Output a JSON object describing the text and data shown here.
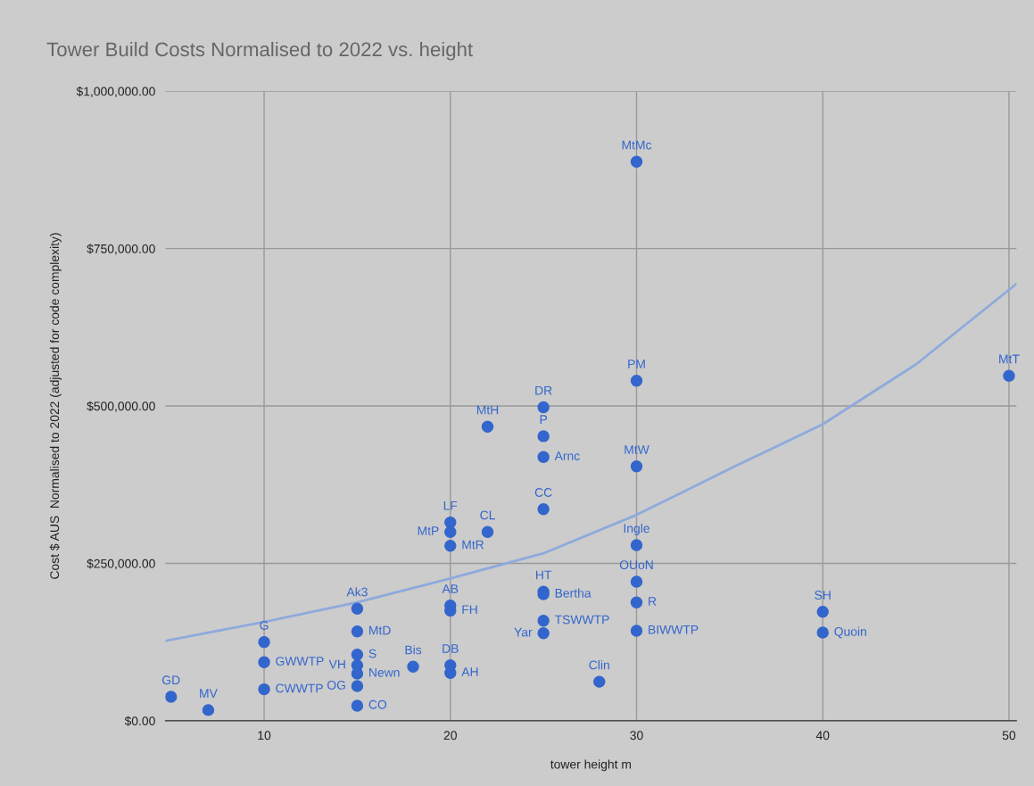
{
  "chart_data": {
    "type": "scatter",
    "title": "Tower Build Costs Normalised to 2022 vs. height",
    "xlabel": "tower height m",
    "ylabel": "Cost $ AUS  Normalised to 2022 (adjusted for code complexity)",
    "series": [
      {
        "color": "#3366cc",
        "marker": "circle",
        "x": [
          5,
          7,
          10,
          10,
          10,
          15,
          15,
          15,
          15,
          15,
          15,
          15,
          18,
          20,
          20,
          20,
          20,
          20,
          20,
          20,
          22,
          22,
          25,
          25,
          25,
          25,
          25,
          25,
          25,
          25,
          28,
          30,
          30,
          30,
          30,
          30,
          30,
          30,
          40,
          40,
          50
        ],
        "values": [
          38000,
          17000,
          125000,
          93000,
          50000,
          178000,
          142000,
          105000,
          88000,
          75000,
          55000,
          24000,
          86000,
          183000,
          175000,
          88000,
          76000,
          278000,
          300000,
          315000,
          300000,
          467000,
          498000,
          452000,
          419000,
          336000,
          205000,
          201000,
          159000,
          139000,
          62000,
          888000,
          540000,
          404000,
          279000,
          221000,
          188000,
          143000,
          173000,
          140000,
          548000
        ],
        "value_labels": [
          "GD",
          "MV",
          "G",
          "GWWTP",
          "CWWTP",
          "Ak3",
          "MtD",
          "S",
          "VH",
          "Newn",
          "OG",
          "CO",
          "Bis",
          "AB",
          "FH",
          "DB",
          "AH",
          "MtR",
          "MtP",
          "LF",
          "CL",
          "MtH",
          "DR",
          "P",
          "Arnc",
          "CC",
          "HT",
          "Bertha",
          "TSWWTP",
          "Yar",
          "Clin",
          "MtMc",
          "PM",
          "MtW",
          "Ingle",
          "OUoN",
          "R",
          "BIWWTP",
          "SH",
          "Quoin",
          "MtT"
        ]
      },
      {
        "type": "line",
        "color": "#8eaadc",
        "marker": "none",
        "line_style": "solid",
        "x": [
          4.7,
          10,
          15,
          20,
          25,
          30,
          35,
          40,
          45,
          50.4
        ],
        "values": [
          127000,
          157000,
          188000,
          226000,
          266000,
          327000,
          400000,
          471000,
          566000,
          694000
        ]
      }
    ],
    "xlim": [
      4.7,
      50.4
    ],
    "xticks": [
      10,
      20,
      30,
      40,
      50
    ],
    "ylim": [
      0,
      1000000
    ],
    "yticks": [
      {
        "value": 0,
        "label": "$0.00"
      },
      {
        "value": 250000,
        "label": "$250,000.00"
      },
      {
        "value": 500000,
        "label": "$500,000.00"
      },
      {
        "value": 750000,
        "label": "$750,000.00"
      },
      {
        "value": 1000000,
        "label": "$1,000,000.00"
      }
    ],
    "grid": true,
    "legend": false
  }
}
